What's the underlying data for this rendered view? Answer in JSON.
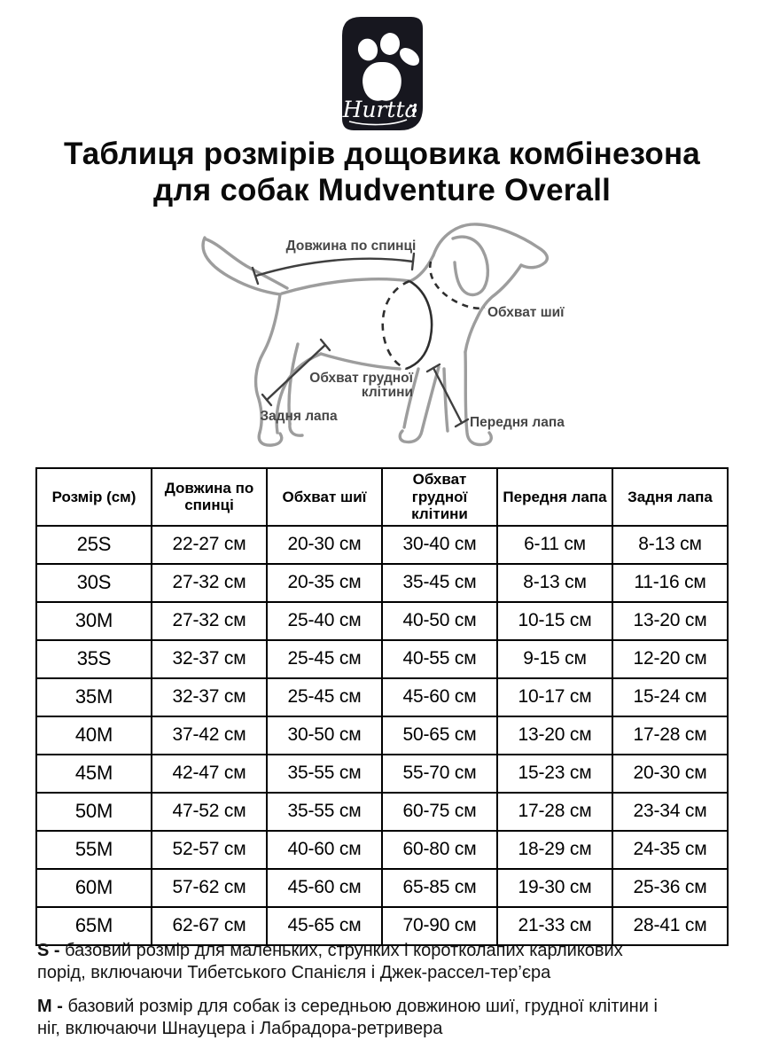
{
  "logo": {
    "brand": "Hurtta",
    "bg_color": "#17171f",
    "paw_color": "#ffffff"
  },
  "title": {
    "line1": "Таблиця розмірів дощовика комбінезона",
    "line2": "для собак Mudventure Overall"
  },
  "diagram": {
    "labels": {
      "back_length": "Довжина по спинці",
      "neck_girth": "Обхват шиї",
      "chest_girth_line1": "Обхват грудної",
      "chest_girth_line2": "клітини",
      "hind_paw": "Задня лапа",
      "front_paw": "Передня лапа"
    }
  },
  "table": {
    "headers": [
      "Розмір (см)",
      "Довжина по спинці",
      "Обхват шиї",
      "Обхват грудної клітини",
      "Передня лапа",
      "Задня лапа"
    ],
    "rows": [
      [
        "25S",
        "22-27 см",
        "20-30 см",
        "30-40 см",
        "6-11 см",
        "8-13 см"
      ],
      [
        "30S",
        "27-32 см",
        "20-35 см",
        "35-45 см",
        "8-13 см",
        "11-16 см"
      ],
      [
        "30M",
        "27-32 см",
        "25-40 см",
        "40-50 см",
        "10-15 см",
        "13-20 см"
      ],
      [
        "35S",
        "32-37 см",
        "25-45 см",
        "40-55 см",
        "9-15 см",
        "12-20 см"
      ],
      [
        "35M",
        "32-37 см",
        "25-45 см",
        "45-60 см",
        "10-17 см",
        "15-24 см"
      ],
      [
        "40M",
        "37-42 см",
        "30-50 см",
        "50-65 см",
        "13-20 см",
        "17-28 см"
      ],
      [
        "45M",
        "42-47 см",
        "35-55 см",
        "55-70 см",
        "15-23 см",
        "20-30 см"
      ],
      [
        "50M",
        "47-52 см",
        "35-55 см",
        "60-75 см",
        "17-28 см",
        "23-34 см"
      ],
      [
        "55M",
        "52-57 см",
        "40-60 см",
        "60-80 см",
        "18-29 см",
        "24-35 см"
      ],
      [
        "60M",
        "57-62 см",
        "45-60 см",
        "65-85 см",
        "19-30 см",
        "25-36 см"
      ],
      [
        "65M",
        "62-67 см",
        "45-65 см",
        "70-90 см",
        "21-33 см",
        "28-41 см"
      ]
    ]
  },
  "notes": [
    {
      "prefix": "S -",
      "text": "базовий розмір для маленьких, струнких і коротколапих карликових порід, включаючи Тибетського Спанієля і Джек-рассел-тер’єра"
    },
    {
      "prefix": "M -",
      "text": "базовий розмір для собак із середньою довжиною шиї, грудної клітини і ніг, включаючи Шнауцера і Лабрадора-ретривера"
    }
  ]
}
